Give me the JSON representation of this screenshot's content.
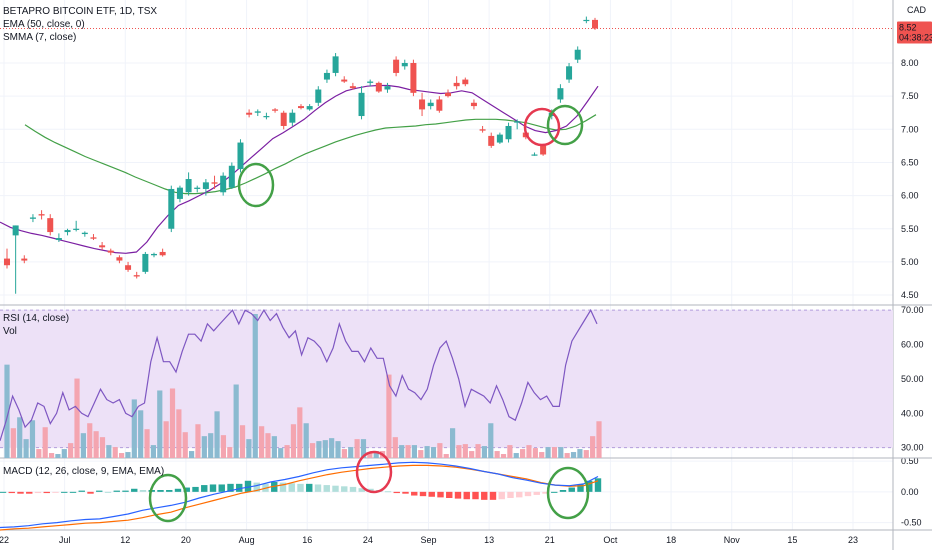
{
  "legend": {
    "title": "BETAPRO BITCOIN ETF, 1D, TSX",
    "ema": "EMA (50, close, 0)",
    "smma": "SMMA (7, close)",
    "rsi": "RSI (14, close)",
    "vol": "Vol",
    "macd": "MACD (12, 26, close, 9, EMA, EMA)"
  },
  "currency": "CAD",
  "price_tag": {
    "price": "8.52",
    "countdown": "04:38:23"
  },
  "colors": {
    "up": "#26a69a",
    "down": "#ef5350",
    "ema": "#43a047",
    "smma": "#7b1fa2",
    "rsi_line": "#7e57c2",
    "rsi_band": "#ede1f7",
    "vol_up": "#8bbad0",
    "vol_down": "#f4a5b0",
    "macd_line": "#2962ff",
    "signal_line": "#ff6d00",
    "circle_green": "#43a047",
    "circle_red": "#e53950"
  },
  "x_axis_labels": [
    "22",
    "Jul",
    "12",
    "20",
    "Aug",
    "16",
    "24",
    "Sep",
    "13",
    "21",
    "Oct",
    "18",
    "Nov",
    "15",
    "23"
  ],
  "chart_data": [
    {
      "type": "candlestick",
      "title": "BETAPRO BITCOIN ETF, 1D, TSX",
      "y_ticks": [
        "8.00",
        "7.50",
        "7.00",
        "6.50",
        "6.00",
        "5.50",
        "5.00",
        "4.50"
      ],
      "ylim": [
        4.35,
        8.95
      ],
      "candles": [
        {
          "o": 5.05,
          "h": 5.2,
          "l": 4.9,
          "c": 4.95
        },
        {
          "o": 5.4,
          "h": 5.55,
          "l": 4.52,
          "c": 5.55
        },
        {
          "o": 5.05,
          "h": 5.1,
          "l": 4.98,
          "c": 5.02
        },
        {
          "o": 5.65,
          "h": 5.72,
          "l": 5.6,
          "c": 5.67
        },
        {
          "o": 5.72,
          "h": 5.78,
          "l": 5.64,
          "c": 5.7
        },
        {
          "o": 5.66,
          "h": 5.72,
          "l": 5.4,
          "c": 5.45
        },
        {
          "o": 5.33,
          "h": 5.43,
          "l": 5.3,
          "c": 5.36
        },
        {
          "o": 5.45,
          "h": 5.5,
          "l": 5.4,
          "c": 5.48
        },
        {
          "o": 5.5,
          "h": 5.62,
          "l": 5.46,
          "c": 5.5
        },
        {
          "o": 5.42,
          "h": 5.46,
          "l": 5.38,
          "c": 5.44
        },
        {
          "o": 5.37,
          "h": 5.42,
          "l": 5.33,
          "c": 5.35
        },
        {
          "o": 5.25,
          "h": 5.3,
          "l": 5.18,
          "c": 5.22
        },
        {
          "o": 5.17,
          "h": 5.2,
          "l": 5.1,
          "c": 5.14
        },
        {
          "o": 5.07,
          "h": 5.1,
          "l": 4.98,
          "c": 5.02
        },
        {
          "o": 4.95,
          "h": 5.0,
          "l": 4.85,
          "c": 4.88
        },
        {
          "o": 4.8,
          "h": 4.85,
          "l": 4.75,
          "c": 4.78
        },
        {
          "o": 4.85,
          "h": 5.15,
          "l": 4.82,
          "c": 5.12
        },
        {
          "o": 5.1,
          "h": 5.14,
          "l": 5.07,
          "c": 5.12
        },
        {
          "o": 5.15,
          "h": 5.2,
          "l": 5.08,
          "c": 5.1
        },
        {
          "o": 5.5,
          "h": 6.15,
          "l": 5.45,
          "c": 6.1
        },
        {
          "o": 5.95,
          "h": 6.15,
          "l": 5.9,
          "c": 6.12
        },
        {
          "o": 6.05,
          "h": 6.35,
          "l": 6.0,
          "c": 6.25
        },
        {
          "o": 6.1,
          "h": 6.15,
          "l": 6.05,
          "c": 6.12
        },
        {
          "o": 6.1,
          "h": 6.25,
          "l": 6.0,
          "c": 6.2
        },
        {
          "o": 6.2,
          "h": 6.3,
          "l": 6.1,
          "c": 6.18
        },
        {
          "o": 6.05,
          "h": 6.35,
          "l": 6.0,
          "c": 6.3
        },
        {
          "o": 6.12,
          "h": 6.5,
          "l": 6.1,
          "c": 6.45
        },
        {
          "o": 6.4,
          "h": 6.85,
          "l": 6.35,
          "c": 6.8
        },
        {
          "o": 7.25,
          "h": 7.3,
          "l": 7.18,
          "c": 7.22
        },
        {
          "o": 7.25,
          "h": 7.3,
          "l": 7.2,
          "c": 7.27
        },
        {
          "o": 7.2,
          "h": 7.25,
          "l": 7.15,
          "c": 7.2
        },
        {
          "o": 7.3,
          "h": 7.32,
          "l": 7.25,
          "c": 7.28
        },
        {
          "o": 7.25,
          "h": 7.28,
          "l": 7.0,
          "c": 7.05
        },
        {
          "o": 7.1,
          "h": 7.3,
          "l": 7.05,
          "c": 7.25
        },
        {
          "o": 7.35,
          "h": 7.38,
          "l": 7.3,
          "c": 7.32
        },
        {
          "o": 7.3,
          "h": 7.38,
          "l": 7.28,
          "c": 7.35
        },
        {
          "o": 7.4,
          "h": 7.65,
          "l": 7.35,
          "c": 7.6
        },
        {
          "o": 7.75,
          "h": 7.9,
          "l": 7.7,
          "c": 7.85
        },
        {
          "o": 7.85,
          "h": 8.15,
          "l": 7.8,
          "c": 8.1
        },
        {
          "o": 7.75,
          "h": 7.8,
          "l": 7.7,
          "c": 7.72
        },
        {
          "o": 7.65,
          "h": 7.7,
          "l": 7.6,
          "c": 7.62
        },
        {
          "o": 7.2,
          "h": 7.65,
          "l": 7.15,
          "c": 7.55
        },
        {
          "o": 7.7,
          "h": 7.75,
          "l": 7.65,
          "c": 7.72
        },
        {
          "o": 7.7,
          "h": 7.72,
          "l": 7.55,
          "c": 7.57
        },
        {
          "o": 7.6,
          "h": 7.7,
          "l": 7.55,
          "c": 7.65
        },
        {
          "o": 8.05,
          "h": 8.1,
          "l": 7.8,
          "c": 7.85
        },
        {
          "o": 7.95,
          "h": 8.05,
          "l": 7.9,
          "c": 8.0
        },
        {
          "o": 8.0,
          "h": 8.05,
          "l": 7.5,
          "c": 7.55
        },
        {
          "o": 7.45,
          "h": 7.55,
          "l": 7.2,
          "c": 7.3
        },
        {
          "o": 7.35,
          "h": 7.45,
          "l": 7.3,
          "c": 7.4
        },
        {
          "o": 7.45,
          "h": 7.5,
          "l": 7.25,
          "c": 7.28
        },
        {
          "o": 7.55,
          "h": 7.6,
          "l": 7.48,
          "c": 7.5
        },
        {
          "o": 7.7,
          "h": 7.8,
          "l": 7.6,
          "c": 7.65
        },
        {
          "o": 7.75,
          "h": 7.78,
          "l": 7.65,
          "c": 7.68
        },
        {
          "o": 7.4,
          "h": 7.45,
          "l": 7.3,
          "c": 7.35
        },
        {
          "o": 7.0,
          "h": 7.05,
          "l": 6.95,
          "c": 6.98
        },
        {
          "o": 6.9,
          "h": 6.95,
          "l": 6.72,
          "c": 6.75
        },
        {
          "o": 6.8,
          "h": 6.95,
          "l": 6.78,
          "c": 6.92
        },
        {
          "o": 6.85,
          "h": 7.1,
          "l": 6.8,
          "c": 7.05
        },
        {
          "o": 7.1,
          "h": 7.15,
          "l": 7.0,
          "c": 7.12
        },
        {
          "o": 6.95,
          "h": 7.0,
          "l": 6.85,
          "c": 6.88
        },
        {
          "o": 6.62,
          "h": 6.65,
          "l": 6.6,
          "c": 6.62
        },
        {
          "o": 6.75,
          "h": 6.78,
          "l": 6.6,
          "c": 6.62
        },
        {
          "o": 7.2,
          "h": 7.3,
          "l": 7.15,
          "c": 7.25
        },
        {
          "o": 7.45,
          "h": 7.68,
          "l": 7.4,
          "c": 7.62
        },
        {
          "o": 7.75,
          "h": 8.0,
          "l": 7.7,
          "c": 7.95
        },
        {
          "o": 8.05,
          "h": 8.25,
          "l": 8.0,
          "c": 8.2
        },
        {
          "o": 8.65,
          "h": 8.7,
          "l": 8.6,
          "c": 8.65
        },
        {
          "o": 8.65,
          "h": 8.68,
          "l": 8.5,
          "c": 8.52
        }
      ],
      "smma": [
        5.6,
        5.52,
        5.47,
        5.43,
        5.4,
        5.36,
        5.32,
        5.28,
        5.24,
        5.2,
        5.17,
        5.14,
        5.13,
        5.15,
        5.3,
        5.52,
        5.7,
        5.85,
        5.92,
        6.0,
        6.08,
        6.18,
        6.3,
        6.44,
        6.58,
        6.72,
        6.86,
        6.95,
        7.05,
        7.15,
        7.28,
        7.4,
        7.5,
        7.58,
        7.62,
        7.65,
        7.66,
        7.66,
        7.64,
        7.6,
        7.58,
        7.56,
        7.54,
        7.55,
        7.58,
        7.55,
        7.45,
        7.35,
        7.25,
        7.15,
        7.05,
        6.98,
        6.95,
        6.98,
        7.05,
        7.2,
        7.42,
        7.65
      ],
      "ema": [
        7.07,
        6.97,
        6.88,
        6.8,
        6.73,
        6.66,
        6.59,
        6.53,
        6.47,
        6.41,
        6.35,
        6.28,
        6.22,
        6.16,
        6.1,
        6.05,
        6.03,
        6.03,
        6.04,
        6.06,
        6.09,
        6.13,
        6.19,
        6.26,
        6.33,
        6.41,
        6.48,
        6.56,
        6.63,
        6.69,
        6.75,
        6.81,
        6.86,
        6.91,
        6.95,
        6.99,
        7.02,
        7.03,
        7.04,
        7.05,
        7.07,
        7.08,
        7.1,
        7.12,
        7.14,
        7.15,
        7.15,
        7.15,
        7.14,
        7.12,
        7.1,
        7.06,
        7.02,
        6.99,
        7.0,
        7.05,
        7.13,
        7.22
      ]
    },
    {
      "type": "line",
      "title": "RSI (14, close)",
      "y_ticks": [
        "70.00",
        "60.00",
        "50.00",
        "40.00",
        "30.00"
      ],
      "ylim": [
        27,
        71.5
      ],
      "band": [
        30,
        70
      ],
      "values": [
        32,
        38,
        45,
        41,
        36,
        38,
        43,
        42,
        37,
        40,
        46,
        41,
        42,
        40,
        39,
        43,
        47,
        44,
        43,
        44,
        40,
        39,
        42,
        43,
        55,
        62,
        55,
        55,
        52,
        58,
        63,
        63,
        61,
        66,
        64,
        66,
        68,
        70,
        66,
        70,
        69,
        67,
        70,
        67,
        69,
        65,
        62,
        64,
        57,
        62,
        61,
        59,
        55,
        59,
        66,
        61,
        58,
        58,
        55,
        59,
        56,
        56,
        48,
        45,
        51,
        47,
        46,
        44,
        47,
        54,
        59,
        61,
        56,
        50,
        42,
        47,
        46,
        45,
        43,
        48,
        44,
        39,
        38,
        43,
        49,
        46,
        44,
        45,
        42,
        42,
        54,
        61,
        64,
        67,
        70,
        66
      ],
      "volume": [
        {
          "v": 4.7,
          "up": true
        },
        {
          "v": 1.5,
          "up": false
        },
        {
          "v": 2.05,
          "up": true
        },
        {
          "v": 0.95,
          "up": true
        },
        {
          "v": 1.9,
          "up": true
        },
        {
          "v": 0.45,
          "up": false
        },
        {
          "v": 1.55,
          "up": false
        },
        {
          "v": 0.25,
          "up": false
        },
        {
          "v": 0.2,
          "up": true
        },
        {
          "v": 0.45,
          "up": true
        },
        {
          "v": 0.75,
          "up": false
        },
        {
          "v": 4.0,
          "up": false
        },
        {
          "v": 1.25,
          "up": true
        },
        {
          "v": 1.75,
          "up": false
        },
        {
          "v": 1.35,
          "up": false
        },
        {
          "v": 1.05,
          "up": false
        },
        {
          "v": 0.65,
          "up": true
        },
        {
          "v": 0.55,
          "up": false
        },
        {
          "v": 0.25,
          "up": false
        },
        {
          "v": 0.3,
          "up": true
        },
        {
          "v": 2.95,
          "up": true
        },
        {
          "v": 2.4,
          "up": true
        },
        {
          "v": 1.45,
          "up": false
        },
        {
          "v": 0.65,
          "up": true
        },
        {
          "v": 3.4,
          "up": true
        },
        {
          "v": 1.85,
          "up": false
        },
        {
          "v": 3.5,
          "up": false
        },
        {
          "v": 2.45,
          "up": false
        },
        {
          "v": 1.3,
          "up": false
        },
        {
          "v": 0.35,
          "up": true
        },
        {
          "v": 1.7,
          "up": false
        },
        {
          "v": 1.1,
          "up": true
        },
        {
          "v": 1.25,
          "up": true
        },
        {
          "v": 2.35,
          "up": true
        },
        {
          "v": 1.15,
          "up": false
        },
        {
          "v": 0.55,
          "up": false
        },
        {
          "v": 3.7,
          "up": true
        },
        {
          "v": 1.65,
          "up": false
        },
        {
          "v": 0.95,
          "up": true
        },
        {
          "v": 7.25,
          "up": true
        },
        {
          "v": 1.6,
          "up": false
        },
        {
          "v": 1.25,
          "up": false
        },
        {
          "v": 1.1,
          "up": true
        },
        {
          "v": 0.5,
          "up": true
        },
        {
          "v": 0.65,
          "up": false
        },
        {
          "v": 1.7,
          "up": false
        },
        {
          "v": 2.55,
          "up": false
        },
        {
          "v": 1.75,
          "up": true
        },
        {
          "v": 0.75,
          "up": false
        },
        {
          "v": 0.85,
          "up": true
        },
        {
          "v": 0.9,
          "up": true
        },
        {
          "v": 1.0,
          "up": true
        },
        {
          "v": 0.85,
          "up": true
        },
        {
          "v": 0.45,
          "up": false
        },
        {
          "v": 0.55,
          "up": true
        },
        {
          "v": 0.95,
          "up": false
        },
        {
          "v": 0.95,
          "up": true
        },
        {
          "v": 0.25,
          "up": false
        },
        {
          "v": 0.35,
          "up": true
        },
        {
          "v": 0.35,
          "up": false
        },
        {
          "v": 4.2,
          "up": false
        },
        {
          "v": 1.05,
          "up": false
        },
        {
          "v": 0.65,
          "up": true
        },
        {
          "v": 0.65,
          "up": false
        },
        {
          "v": 0.65,
          "up": true
        },
        {
          "v": 0.4,
          "up": false
        },
        {
          "v": 0.6,
          "up": true
        },
        {
          "v": 0.55,
          "up": true
        },
        {
          "v": 0.75,
          "up": false
        },
        {
          "v": 0.2,
          "up": false
        },
        {
          "v": 1.5,
          "up": true
        },
        {
          "v": 0.65,
          "up": false
        },
        {
          "v": 0.7,
          "up": false
        },
        {
          "v": 0.35,
          "up": false
        },
        {
          "v": 0.7,
          "up": false
        },
        {
          "v": 0.6,
          "up": true
        },
        {
          "v": 1.75,
          "up": true
        },
        {
          "v": 0.35,
          "up": false
        },
        {
          "v": 0.2,
          "up": false
        },
        {
          "v": 0.65,
          "up": false
        },
        {
          "v": 0.25,
          "up": true
        },
        {
          "v": 0.45,
          "up": false
        },
        {
          "v": 0.65,
          "up": false
        },
        {
          "v": 0.5,
          "up": false
        },
        {
          "v": 0.3,
          "up": false
        },
        {
          "v": 0.55,
          "up": true
        },
        {
          "v": 0.55,
          "up": false
        },
        {
          "v": 0.55,
          "up": true
        },
        {
          "v": 0.25,
          "up": false
        },
        {
          "v": 0.3,
          "up": true
        },
        {
          "v": 0.45,
          "up": true
        },
        {
          "v": 0.4,
          "up": false
        },
        {
          "v": 1.1,
          "up": false
        },
        {
          "v": 1.85,
          "up": false
        }
      ]
    },
    {
      "type": "bar",
      "title": "MACD (12, 26, close, 9, EMA, EMA)",
      "y_ticks": [
        "0.50",
        "0.00",
        "-0.50"
      ],
      "ylim": [
        -0.62,
        0.55
      ],
      "histogram": [
        0.0,
        -0.02,
        -0.03,
        -0.03,
        -0.02,
        -0.02,
        -0.01,
        0.0,
        0.0,
        0.02,
        -0.03,
        0.02,
        0.0,
        0.02,
        0.02,
        0.05,
        0.03,
        0.03,
        0.03,
        0.03,
        0.05,
        0.07,
        0.08,
        0.11,
        0.12,
        0.12,
        0.13,
        0.13,
        0.18,
        0.15,
        0.13,
        0.16,
        0.15,
        0.14,
        0.13,
        0.13,
        0.12,
        0.11,
        0.1,
        0.09,
        0.08,
        0.06,
        0.05,
        0.03,
        0.01,
        -0.02,
        -0.03,
        -0.06,
        -0.07,
        -0.08,
        -0.09,
        -0.1,
        -0.11,
        -0.12,
        -0.12,
        -0.13,
        -0.13,
        -0.12,
        -0.1,
        -0.09,
        -0.07,
        -0.05,
        -0.03,
        0.0,
        0.03,
        0.07,
        0.12,
        0.18,
        0.22
      ],
      "macd": [
        -0.58,
        -0.57,
        -0.55,
        -0.52,
        -0.5,
        -0.47,
        -0.45,
        -0.44,
        -0.4,
        -0.36,
        -0.3,
        -0.26,
        -0.22,
        -0.17,
        -0.1,
        -0.04,
        0.01,
        0.06,
        0.1,
        0.16,
        0.2,
        0.25,
        0.31,
        0.36,
        0.39,
        0.41,
        0.43,
        0.45,
        0.47,
        0.48,
        0.47,
        0.45,
        0.42,
        0.38,
        0.33,
        0.29,
        0.23,
        0.19,
        0.14,
        0.11,
        0.1,
        0.13,
        0.25
      ],
      "signal": [
        -0.62,
        -0.6,
        -0.59,
        -0.57,
        -0.55,
        -0.53,
        -0.51,
        -0.5,
        -0.48,
        -0.46,
        -0.42,
        -0.37,
        -0.33,
        -0.26,
        -0.2,
        -0.14,
        -0.08,
        -0.02,
        0.02,
        0.08,
        0.12,
        0.18,
        0.23,
        0.28,
        0.32,
        0.35,
        0.38,
        0.4,
        0.42,
        0.43,
        0.43,
        0.42,
        0.4,
        0.37,
        0.33,
        0.29,
        0.25,
        0.21,
        0.15,
        0.11,
        0.09,
        0.1,
        0.18
      ]
    }
  ]
}
